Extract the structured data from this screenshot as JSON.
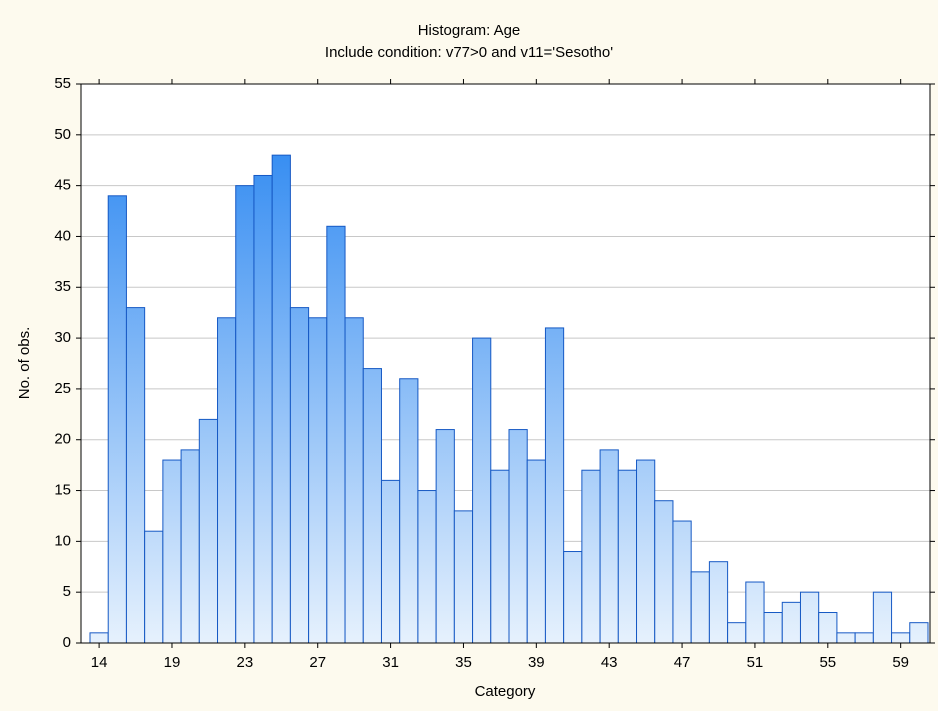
{
  "chart_data": {
    "type": "bar",
    "title": "Histogram: Age",
    "subtitle": "Include condition: v77>0 and v11='Sesotho'",
    "x_label": "Category",
    "y_label": "No. of obs.",
    "categories": [
      "14",
      null,
      null,
      null,
      "19",
      null,
      null,
      null,
      "23",
      null,
      null,
      null,
      "27",
      null,
      null,
      null,
      "31",
      null,
      null,
      null,
      "35",
      null,
      null,
      null,
      "39",
      null,
      null,
      null,
      "43",
      null,
      null,
      null,
      "47",
      null,
      null,
      null,
      "51",
      null,
      null,
      null,
      "55",
      null,
      null,
      null,
      "59",
      null
    ],
    "values": [
      1,
      44,
      33,
      11,
      18,
      19,
      22,
      32,
      45,
      46,
      48,
      33,
      32,
      41,
      32,
      27,
      16,
      26,
      15,
      21,
      13,
      30,
      17,
      21,
      18,
      31,
      9,
      17,
      19,
      17,
      18,
      14,
      12,
      7,
      8,
      2,
      6,
      3,
      4,
      5,
      3,
      1,
      1,
      5,
      1,
      2
    ],
    "color": "#1f80f0",
    "ylim": [
      0,
      55
    ],
    "yticks": [
      0,
      5,
      10,
      15,
      20,
      25,
      30,
      35,
      40,
      45,
      50,
      55
    ],
    "grid": true
  }
}
